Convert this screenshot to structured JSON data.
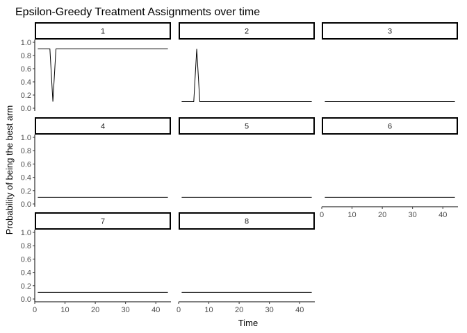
{
  "chart_data": {
    "type": "line",
    "title": "Epsilon-Greedy Treatment Assignments over time",
    "xlabel": "Time",
    "ylabel": "Probability of being the best arm",
    "xlim": [
      0,
      45
    ],
    "ylim": [
      0,
      1
    ],
    "x_ticks": [
      0,
      10,
      20,
      30,
      40
    ],
    "y_ticks": [
      0.0,
      0.2,
      0.4,
      0.6,
      0.8,
      1.0
    ],
    "grid": false,
    "facets": [
      {
        "label": "1",
        "x": [
          1,
          5,
          6,
          7,
          8,
          44
        ],
        "y": [
          0.9,
          0.9,
          0.1,
          0.9,
          0.9,
          0.9
        ]
      },
      {
        "label": "2",
        "x": [
          1,
          5,
          6,
          7,
          44
        ],
        "y": [
          0.1,
          0.1,
          0.9,
          0.1,
          0.1
        ]
      },
      {
        "label": "3",
        "x": [
          1,
          44
        ],
        "y": [
          0.1,
          0.1
        ]
      },
      {
        "label": "4",
        "x": [
          1,
          44
        ],
        "y": [
          0.1,
          0.1
        ]
      },
      {
        "label": "5",
        "x": [
          1,
          44
        ],
        "y": [
          0.1,
          0.1
        ]
      },
      {
        "label": "6",
        "x": [
          1,
          44
        ],
        "y": [
          0.1,
          0.1
        ]
      },
      {
        "label": "7",
        "x": [
          1,
          44
        ],
        "y": [
          0.1,
          0.1
        ]
      },
      {
        "label": "8",
        "x": [
          1,
          44
        ],
        "y": [
          0.1,
          0.1
        ]
      }
    ]
  }
}
